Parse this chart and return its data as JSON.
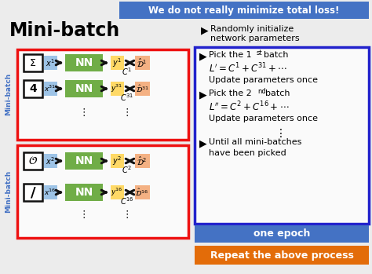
{
  "title": "Mini-batch",
  "top_banner_text": "We do not really minimize total loss!",
  "top_banner_color": "#4472C4",
  "top_banner_text_color": "#FFFFFF",
  "background_color": "#F0F0F0",
  "left_label_color": "#4472C4",
  "mini_batch_label": "Mini-batch",
  "right_panel_border_color": "#2222CC",
  "one_epoch_color": "#4472C4",
  "one_epoch_text": "one epoch",
  "repeat_color": "#E36C09",
  "repeat_text": "Repeat the above process",
  "red_box_color": "#EE1111",
  "nn_box_color": "#70AD47",
  "input_box_color": "#9DC3E6",
  "output_box_color": "#FFD966",
  "yhat_box_color": "#F4B183",
  "icon_box_color": "#FFFFFF",
  "icon_box_ec": "#111111",
  "arrow_color": "#111111",
  "text_color": "#222222"
}
